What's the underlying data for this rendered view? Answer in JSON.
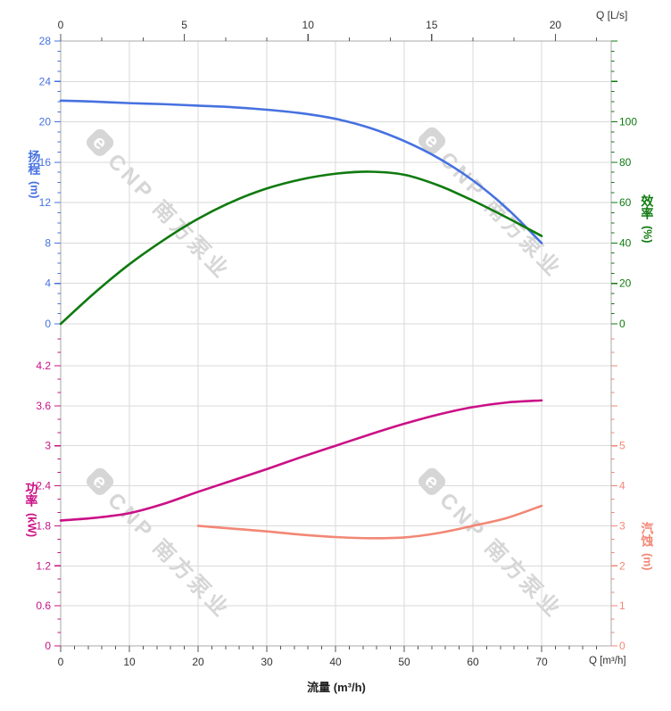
{
  "watermark": {
    "logo_letter": "e",
    "text": "CNP 南方泵业"
  },
  "labels": {
    "x_axis_title": "流量 (m³/h)",
    "x_axis_top_unit": "Q [L/s]",
    "x_axis_bottom_unit": "Q [m³/h]",
    "head_title": "扬程",
    "head_unit": "(m)",
    "efficiency_title": "效率",
    "efficiency_unit": "(%)",
    "power_title": "功率",
    "power_unit": "(kW)",
    "npsh_title": "汽蚀",
    "npsh_unit": "(m)"
  },
  "colors": {
    "head": "#4671e0",
    "efficiency": "#0f7a0f",
    "power": "#cb1086",
    "npsh": "#f28775",
    "grid": "#dadada",
    "spine": "#aaaaaa",
    "axis_text": "#333333",
    "axis_tick": "#555555",
    "watermark": "#d6d6d6"
  },
  "chart_data": {
    "type": "line",
    "title": "",
    "x_unit_bottom": "m³/h",
    "x_unit_top": "L/s",
    "x_ticks_bottom": [
      0,
      10,
      20,
      30,
      40,
      50,
      60,
      70
    ],
    "x_ticks_top_ls": [
      0,
      5,
      10,
      15,
      20
    ],
    "x_range_m3h": [
      0,
      80
    ],
    "grid": true,
    "top_chart": {
      "head_axis": {
        "side": "left",
        "ticks": [
          0,
          4,
          8,
          12,
          16,
          20,
          24,
          28
        ],
        "range": [
          0,
          28
        ]
      },
      "efficiency_axis": {
        "side": "right",
        "ticks": [
          0,
          20,
          40,
          60,
          80,
          100
        ],
        "unlabeled_ticks": [
          120,
          140
        ],
        "range": [
          0,
          140
        ]
      },
      "series": [
        {
          "key": "head",
          "name": "扬程",
          "unit": "m",
          "points": [
            [
              0,
              22.1
            ],
            [
              5,
              22.0
            ],
            [
              10,
              21.85
            ],
            [
              15,
              21.75
            ],
            [
              20,
              21.6
            ],
            [
              25,
              21.45
            ],
            [
              30,
              21.2
            ],
            [
              35,
              20.85
            ],
            [
              40,
              20.3
            ],
            [
              45,
              19.4
            ],
            [
              50,
              18.1
            ],
            [
              55,
              16.4
            ],
            [
              60,
              14.2
            ],
            [
              65,
              11.4
            ],
            [
              70,
              8.0
            ]
          ]
        },
        {
          "key": "efficiency",
          "name": "效率",
          "unit": "%",
          "points": [
            [
              0,
              0
            ],
            [
              5,
              15.5
            ],
            [
              10,
              29.5
            ],
            [
              15,
              41.5
            ],
            [
              20,
              52
            ],
            [
              25,
              60.5
            ],
            [
              30,
              67
            ],
            [
              35,
              71.5
            ],
            [
              40,
              74.3
            ],
            [
              45,
              75.3
            ],
            [
              50,
              73.8
            ],
            [
              55,
              68.5
            ],
            [
              60,
              61
            ],
            [
              65,
              52.5
            ],
            [
              70,
              43.5
            ]
          ]
        }
      ]
    },
    "bottom_chart": {
      "power_axis": {
        "side": "left",
        "ticks": [
          0,
          0.6,
          1.2,
          1.8,
          2.4,
          3,
          3.6,
          4.2
        ],
        "range": [
          0,
          4.7
        ]
      },
      "npsh_axis": {
        "side": "right",
        "ticks": [
          0,
          1,
          2,
          3,
          4,
          5
        ],
        "unlabeled_ticks": [
          6,
          7
        ],
        "range": [
          0,
          7
        ]
      },
      "series": [
        {
          "key": "power",
          "name": "功率",
          "unit": "kW",
          "points": [
            [
              0,
              1.88
            ],
            [
              5,
              1.92
            ],
            [
              10,
              1.99
            ],
            [
              15,
              2.13
            ],
            [
              20,
              2.31
            ],
            [
              25,
              2.48
            ],
            [
              30,
              2.65
            ],
            [
              35,
              2.83
            ],
            [
              40,
              3.0
            ],
            [
              45,
              3.17
            ],
            [
              50,
              3.33
            ],
            [
              55,
              3.47
            ],
            [
              60,
              3.58
            ],
            [
              65,
              3.65
            ],
            [
              70,
              3.68
            ]
          ]
        },
        {
          "key": "npsh",
          "name": "汽蚀",
          "unit": "m",
          "points": [
            [
              20,
              3.0
            ],
            [
              25,
              2.93
            ],
            [
              30,
              2.86
            ],
            [
              35,
              2.78
            ],
            [
              40,
              2.72
            ],
            [
              45,
              2.69
            ],
            [
              50,
              2.71
            ],
            [
              55,
              2.82
            ],
            [
              60,
              3.0
            ],
            [
              65,
              3.2
            ],
            [
              70,
              3.5
            ]
          ]
        }
      ]
    }
  }
}
